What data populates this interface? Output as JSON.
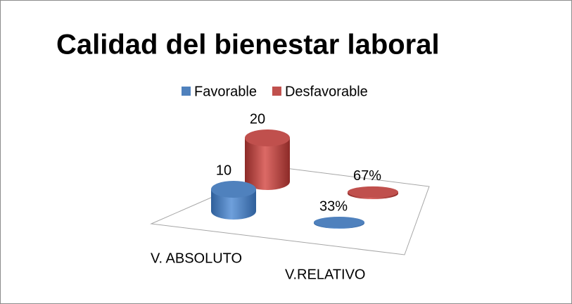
{
  "chart_data": {
    "type": "bar3d",
    "title": "Calidad del bienestar laboral",
    "categories": [
      "V. ABSOLUTO",
      "V.RELATIVO"
    ],
    "series": [
      {
        "name": "Favorable",
        "color": "#4f81bd",
        "values": [
          10,
          0.33
        ],
        "value_labels": [
          "10",
          "33%"
        ]
      },
      {
        "name": "Desfavorable",
        "color": "#c0504d",
        "values": [
          20,
          0.67
        ],
        "value_labels": [
          "20",
          "67%"
        ]
      }
    ],
    "ylim": [
      0,
      25
    ],
    "legend": "top"
  }
}
